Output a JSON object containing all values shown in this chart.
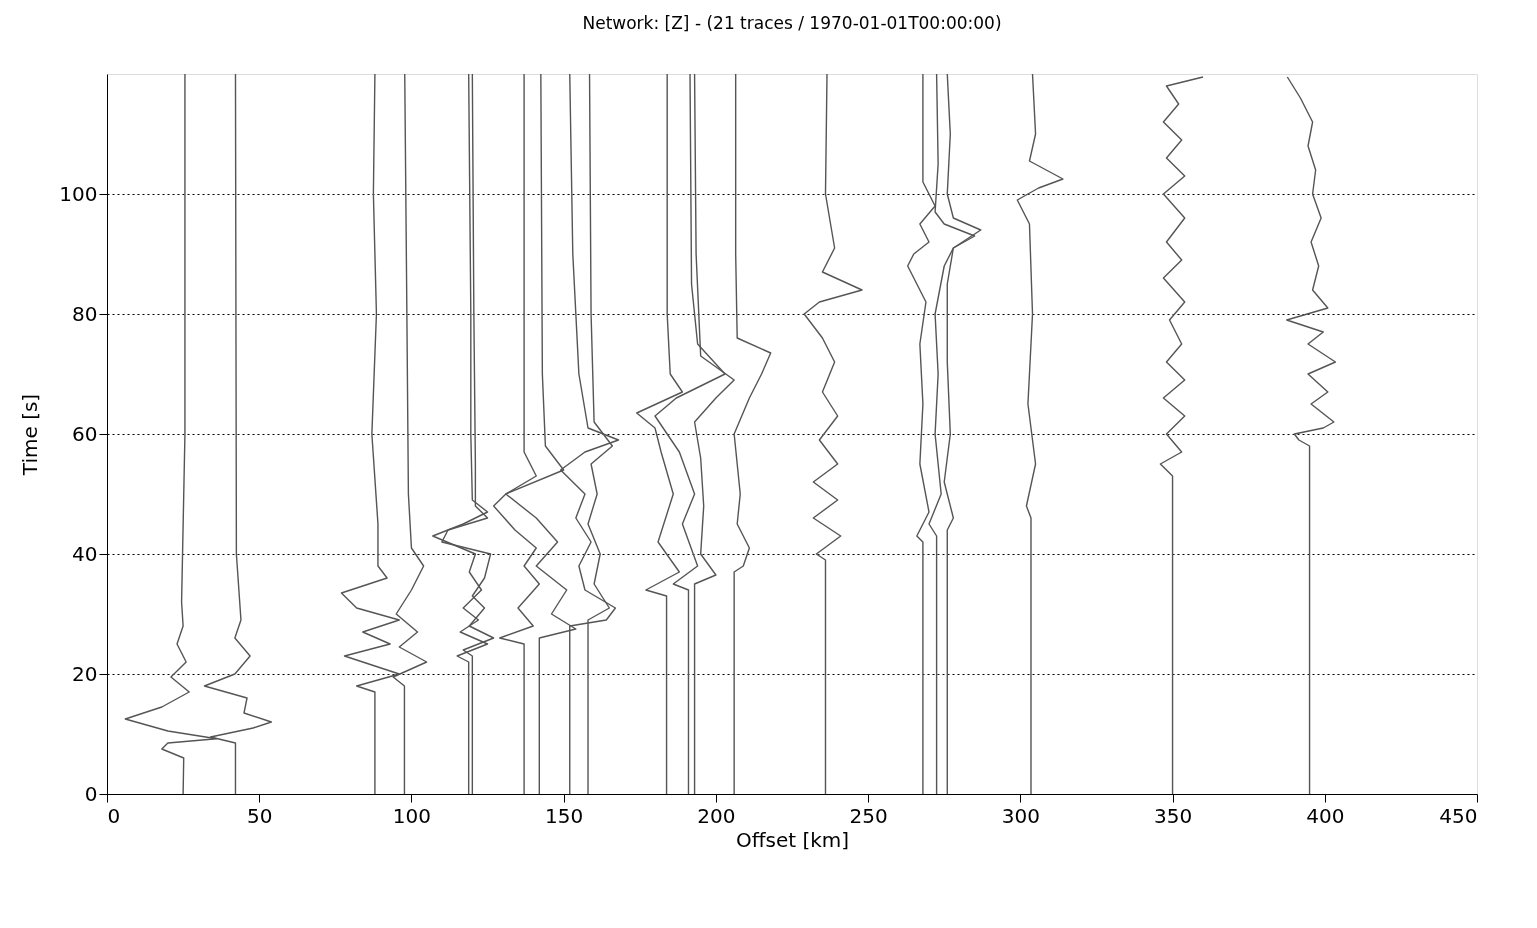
{
  "chart_data": {
    "type": "line",
    "title": "Network:  [Z] - (21 traces / 1970-01-01T00:00:00)",
    "xlabel": "Offset [km]",
    "ylabel": "Time [s]",
    "xlim": [
      0,
      450
    ],
    "xticks": [
      0,
      50,
      100,
      150,
      200,
      250,
      300,
      350,
      400,
      450
    ],
    "ylim": [
      0,
      120
    ],
    "yticks": [
      0,
      20,
      40,
      60,
      80,
      100
    ],
    "grid": "y",
    "legend": false,
    "marker": "none",
    "line_style": "solid",
    "series": [
      {
        "color": "#555555",
        "x": [
          25,
          25.2,
          18,
          20,
          36,
          20,
          6,
          18,
          27,
          21,
          26,
          23,
          25,
          24.5,
          25.6,
          25.6
        ],
        "values": [
          0,
          6,
          7.5,
          8.5,
          9.2,
          10.5,
          12.5,
          14.5,
          17,
          19.5,
          22,
          25,
          28,
          32,
          60,
          120
        ]
      },
      {
        "color": "#555555",
        "x": [
          42.2,
          42.2,
          34,
          48,
          54,
          45,
          46,
          32,
          42,
          47,
          42,
          44,
          42.5,
          42.2
        ],
        "values": [
          0,
          8.5,
          9.5,
          11,
          12,
          13.5,
          16,
          18,
          20,
          23,
          26,
          29,
          40,
          120
        ]
      },
      {
        "color": "#555555",
        "x": [
          88,
          88,
          82,
          96,
          78,
          93,
          84,
          96,
          82,
          77,
          92,
          89,
          89,
          87,
          88.5,
          87.5,
          88
        ],
        "values": [
          0,
          17,
          18,
          20,
          23,
          25,
          27,
          29,
          31,
          33.5,
          36,
          38,
          45,
          60,
          80,
          100,
          120
        ]
      },
      {
        "color": "#555555",
        "x": [
          97.7,
          97.7,
          94,
          105,
          96,
          102,
          95,
          100,
          104,
          100,
          99,
          98.5,
          97.8
        ],
        "values": [
          0,
          18,
          19.5,
          22,
          24.5,
          27,
          30,
          34,
          38,
          41,
          50,
          80,
          120
        ]
      },
      {
        "color": "#555555",
        "x": [
          118.8,
          118.8,
          115,
          125,
          116,
          122,
          117,
          123,
          119,
          121,
          107,
          117,
          125,
          120,
          119.5,
          119.5,
          118.8
        ],
        "values": [
          0,
          22,
          23,
          25,
          27,
          29,
          31,
          34,
          37,
          40,
          43,
          45,
          47,
          49,
          60,
          80,
          120
        ]
      },
      {
        "color": "#555555",
        "x": [
          120,
          120,
          117,
          127,
          119,
          124,
          120,
          124,
          126,
          110,
          112,
          125,
          121,
          121,
          120.5,
          120
        ],
        "values": [
          0,
          23,
          24,
          26,
          28,
          31,
          33,
          36,
          40,
          42,
          44,
          46,
          48,
          55,
          80,
          120
        ]
      },
      {
        "color": "#555555",
        "x": [
          137,
          137,
          129,
          140,
          135,
          142,
          137,
          141,
          134,
          127,
          131,
          141,
          137,
          137,
          137
        ],
        "values": [
          0,
          25,
          26,
          28,
          31,
          35,
          38,
          41,
          44,
          48,
          50,
          53,
          57,
          70,
          120
        ]
      },
      {
        "color": "#555555",
        "x": [
          142,
          142,
          154,
          146,
          151,
          141,
          148,
          141,
          131,
          150,
          144,
          143,
          142.5
        ],
        "values": [
          0,
          26,
          27.5,
          30,
          34,
          38,
          42,
          46,
          50,
          54,
          58,
          70,
          120
        ]
      },
      {
        "color": "#555555",
        "x": [
          152,
          152,
          164,
          167,
          157,
          155,
          159,
          154,
          157,
          149,
          157,
          168,
          158,
          155,
          153,
          152
        ],
        "values": [
          0,
          28,
          29,
          31,
          34,
          38,
          42,
          46,
          50,
          54,
          57,
          59,
          61,
          70,
          90,
          120
        ]
      },
      {
        "color": "#555555",
        "x": [
          158,
          158,
          165,
          160,
          162,
          158,
          161,
          159,
          166,
          160,
          159,
          158.5
        ],
        "values": [
          0,
          29,
          31,
          35,
          40,
          45,
          50,
          55,
          58,
          62,
          80,
          120
        ]
      },
      {
        "color": "#555555",
        "x": [
          183.8,
          183.8,
          177,
          188,
          181,
          186,
          182,
          180,
          174,
          189,
          185,
          184,
          184
        ],
        "values": [
          0,
          33,
          34,
          37,
          42,
          50,
          57,
          61,
          63.5,
          67,
          70,
          80,
          120
        ]
      },
      {
        "color": "#555555",
        "x": [
          191,
          191,
          186,
          194,
          189,
          193,
          188,
          180,
          187,
          203,
          194,
          192,
          191.5
        ],
        "values": [
          0,
          34,
          35,
          38,
          45,
          50,
          57,
          63,
          66,
          70,
          75,
          85,
          120
        ]
      },
      {
        "color": "#555555",
        "x": [
          193,
          193,
          200,
          195,
          196,
          195,
          193,
          200,
          206,
          195,
          193.5,
          193
        ],
        "values": [
          0,
          35,
          36.5,
          40,
          48,
          56,
          62,
          66,
          69,
          73,
          90,
          120
        ]
      },
      {
        "color": "#555555",
        "x": [
          206,
          206,
          209,
          211,
          207,
          208,
          206,
          211,
          215,
          218,
          207,
          206.5,
          206.5
        ],
        "values": [
          0,
          37,
          38,
          41,
          45,
          50,
          60,
          66,
          70,
          73.5,
          76,
          90,
          120
        ]
      },
      {
        "color": "#555555",
        "x": [
          236,
          236,
          233,
          241,
          232,
          240,
          232,
          240,
          234,
          240,
          235,
          239,
          235,
          229,
          234,
          248,
          235,
          239,
          236,
          236.5
        ],
        "values": [
          0,
          39,
          40,
          43,
          46,
          49,
          52,
          55,
          59,
          63,
          67,
          72,
          76,
          80,
          82,
          84,
          87,
          91,
          100,
          120
        ]
      },
      {
        "color": "#555555",
        "x": [
          268,
          268,
          266,
          270,
          267,
          268,
          267,
          269,
          263,
          265,
          270,
          267,
          272,
          268,
          268
        ],
        "values": [
          0,
          42,
          43,
          47,
          55,
          65,
          75,
          82,
          88,
          90,
          92,
          95,
          98,
          102,
          120
        ]
      },
      {
        "color": "#555555",
        "x": [
          272.5,
          272.5,
          270,
          274,
          272,
          273,
          272,
          275,
          278,
          285,
          275,
          272,
          273,
          272.5
        ],
        "values": [
          0,
          43,
          45,
          50,
          60,
          70,
          80,
          88,
          91,
          93,
          95,
          97,
          105,
          120
        ]
      },
      {
        "color": "#555555",
        "x": [
          276,
          276,
          278,
          275,
          277,
          276,
          276,
          278,
          287,
          278,
          276,
          277,
          276
        ],
        "values": [
          0,
          44,
          46,
          52,
          60,
          72,
          85,
          91,
          94,
          96,
          100,
          110,
          120
        ]
      },
      {
        "color": "#555555",
        "x": [
          303.5,
          303.5,
          302,
          305,
          302.5,
          304,
          303,
          299,
          306,
          314,
          303,
          305,
          304
        ],
        "values": [
          0,
          46,
          48,
          55,
          65,
          80,
          95,
          99,
          101,
          102.5,
          105.5,
          110,
          120
        ]
      },
      {
        "color": "#555555",
        "x": [
          350,
          350,
          346,
          353,
          348,
          354,
          347,
          354,
          348,
          353,
          349,
          354,
          347,
          353,
          348,
          354,
          347,
          354,
          348,
          353,
          347,
          352,
          348,
          360
        ],
        "values": [
          0,
          53,
          55,
          57,
          60,
          63,
          66,
          69,
          72,
          75,
          79,
          82,
          86,
          89,
          92,
          96,
          100,
          103,
          106,
          109,
          112,
          115,
          118,
          119.5
        ]
      },
      {
        "color": "#555555",
        "x": [
          395,
          395,
          391.5,
          390,
          399.5,
          403,
          395.5,
          401,
          394.5,
          403.5,
          394.5,
          399.5,
          387.5,
          401,
          396,
          398,
          395.5,
          398.8,
          396,
          397,
          394.5,
          396,
          392,
          387.7
        ],
        "values": [
          0,
          58,
          59,
          60,
          61,
          62,
          65,
          67,
          70,
          72,
          75,
          77,
          79,
          81,
          84,
          88,
          92,
          96,
          100,
          104,
          108,
          112,
          116,
          119.5
        ]
      }
    ]
  }
}
